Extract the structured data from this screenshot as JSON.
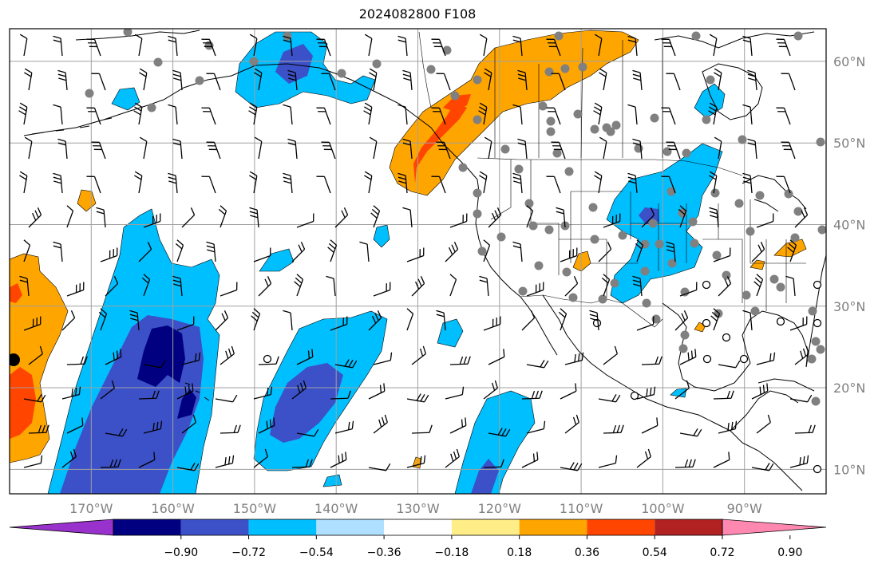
{
  "title": "2024082800 F108",
  "map": {
    "lon_range": [
      -180,
      -80
    ],
    "lat_range": [
      7,
      64
    ],
    "lon_ticks": [
      {
        "value": -170,
        "label": "170°W"
      },
      {
        "value": -160,
        "label": "160°W"
      },
      {
        "value": -150,
        "label": "150°W"
      },
      {
        "value": -140,
        "label": "140°W"
      },
      {
        "value": -130,
        "label": "130°W"
      },
      {
        "value": -120,
        "label": "120°W"
      },
      {
        "value": -110,
        "label": "110°W"
      },
      {
        "value": -100,
        "label": "100°W"
      },
      {
        "value": -90,
        "label": "90°W"
      }
    ],
    "lat_ticks": [
      {
        "value": 60,
        "label": "60°N"
      },
      {
        "value": 50,
        "label": "50°N"
      },
      {
        "value": 40,
        "label": "40°N"
      },
      {
        "value": 30,
        "label": "30°N"
      },
      {
        "value": 20,
        "label": "20°N"
      },
      {
        "value": 10,
        "label": "10°N"
      }
    ],
    "gridlines": true
  },
  "colorbar": {
    "bounds": [
      "−0.90",
      "−0.72",
      "−0.54",
      "−0.36",
      "−0.18",
      "0.18",
      "0.36",
      "0.54",
      "0.72",
      "0.90"
    ],
    "colors": [
      "#9932cc",
      "#000080",
      "#3c50c8",
      "#00bfff",
      "#b0e0ff",
      "#ffffff",
      "#ffee88",
      "#ffa500",
      "#ff4500",
      "#b22222",
      "#ff88b0"
    ],
    "extend": "both"
  },
  "colors": {
    "grid": "#a0a0a0",
    "coast": "#000000",
    "station_dot": "#808080"
  }
}
